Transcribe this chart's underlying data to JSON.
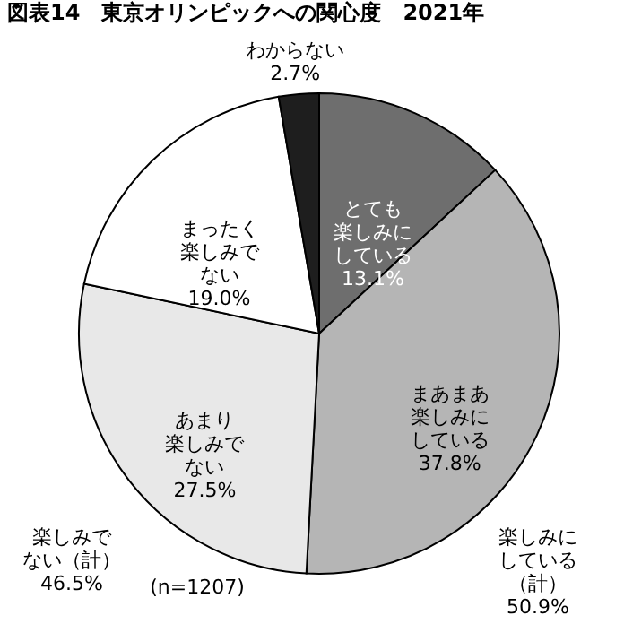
{
  "chart_data": {
    "type": "pie",
    "title": "図表14　東京オリンピックへの関心度　2021年",
    "categories": [
      "とても楽しみにしている",
      "まあまあ楽しみにしている",
      "あまり楽しみでない",
      "まったく楽しみでない",
      "わからない"
    ],
    "values": [
      13.1,
      37.8,
      27.5,
      19.0,
      2.7
    ],
    "colors": [
      "#6e6e6e",
      "#b5b5b5",
      "#e8e8e8",
      "#ffffff",
      "#1e1e1e"
    ],
    "value_labels": [
      "13.1%",
      "37.8%",
      "27.5%",
      "19.0%",
      "2.7%"
    ],
    "annotations": [
      "楽しみでない（計）\n46.5%",
      "(n=1207)",
      "楽しみにしている（計）\n50.9%"
    ]
  }
}
